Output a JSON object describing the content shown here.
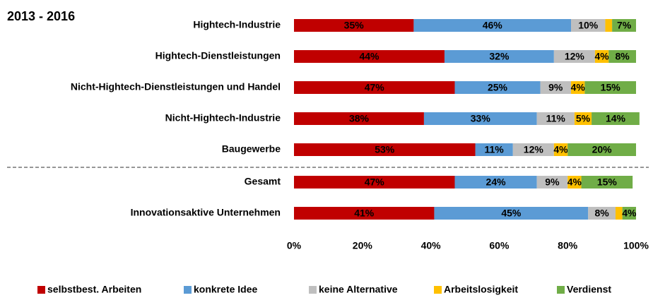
{
  "chart_data": {
    "type": "stacked-bar",
    "orientation": "horizontal",
    "title": "2013 - 2016",
    "categories": [
      "Hightech-Industrie",
      "Hightech-Dienstleistungen",
      "Nicht-Hightech-Dienstleistungen und Handel",
      "Nicht-Hightech-Industrie",
      "Baugewerbe",
      "Gesamt",
      "Innovationsaktive Unternehmen"
    ],
    "series": [
      {
        "name": "selbstbest. Arbeiten",
        "color": "#c00000",
        "values": [
          35,
          44,
          47,
          38,
          53,
          47,
          41
        ],
        "value_labels": [
          "35%",
          "44%",
          "47%",
          "38%",
          "53%",
          "47%",
          "41%"
        ]
      },
      {
        "name": "konkrete Idee",
        "color": "#5b9bd5",
        "values": [
          46,
          32,
          25,
          33,
          11,
          24,
          45
        ],
        "value_labels": [
          "46%",
          "32%",
          "25%",
          "33%",
          "11%",
          "24%",
          "45%"
        ]
      },
      {
        "name": "keine Alternative",
        "color": "#bfbfbf",
        "values": [
          10,
          12,
          9,
          11,
          12,
          9,
          8
        ],
        "value_labels": [
          "10%",
          "12%",
          "9%",
          "11%",
          "12%",
          "9%",
          "8%"
        ]
      },
      {
        "name": "Arbeitslosigkeit",
        "color": "#ffc000",
        "values": [
          2,
          4,
          4,
          5,
          4,
          4,
          2
        ],
        "value_labels": [
          null,
          "4%",
          "4%",
          "5%",
          "4%",
          "4%",
          null
        ]
      },
      {
        "name": "Verdienst",
        "color": "#70ad47",
        "values": [
          7,
          8,
          15,
          14,
          20,
          15,
          4
        ],
        "value_labels": [
          "7%",
          "8%",
          "15%",
          "14%",
          "20%",
          "15%",
          "4%"
        ]
      }
    ],
    "xlim": [
      0,
      100
    ],
    "xticks": [
      {
        "value": 0,
        "label": "0%"
      },
      {
        "value": 20,
        "label": "20%"
      },
      {
        "value": 40,
        "label": "40%"
      },
      {
        "value": 60,
        "label": "60%"
      },
      {
        "value": 80,
        "label": "80%"
      },
      {
        "value": 100,
        "label": "100%"
      }
    ],
    "legend": "bottom"
  }
}
